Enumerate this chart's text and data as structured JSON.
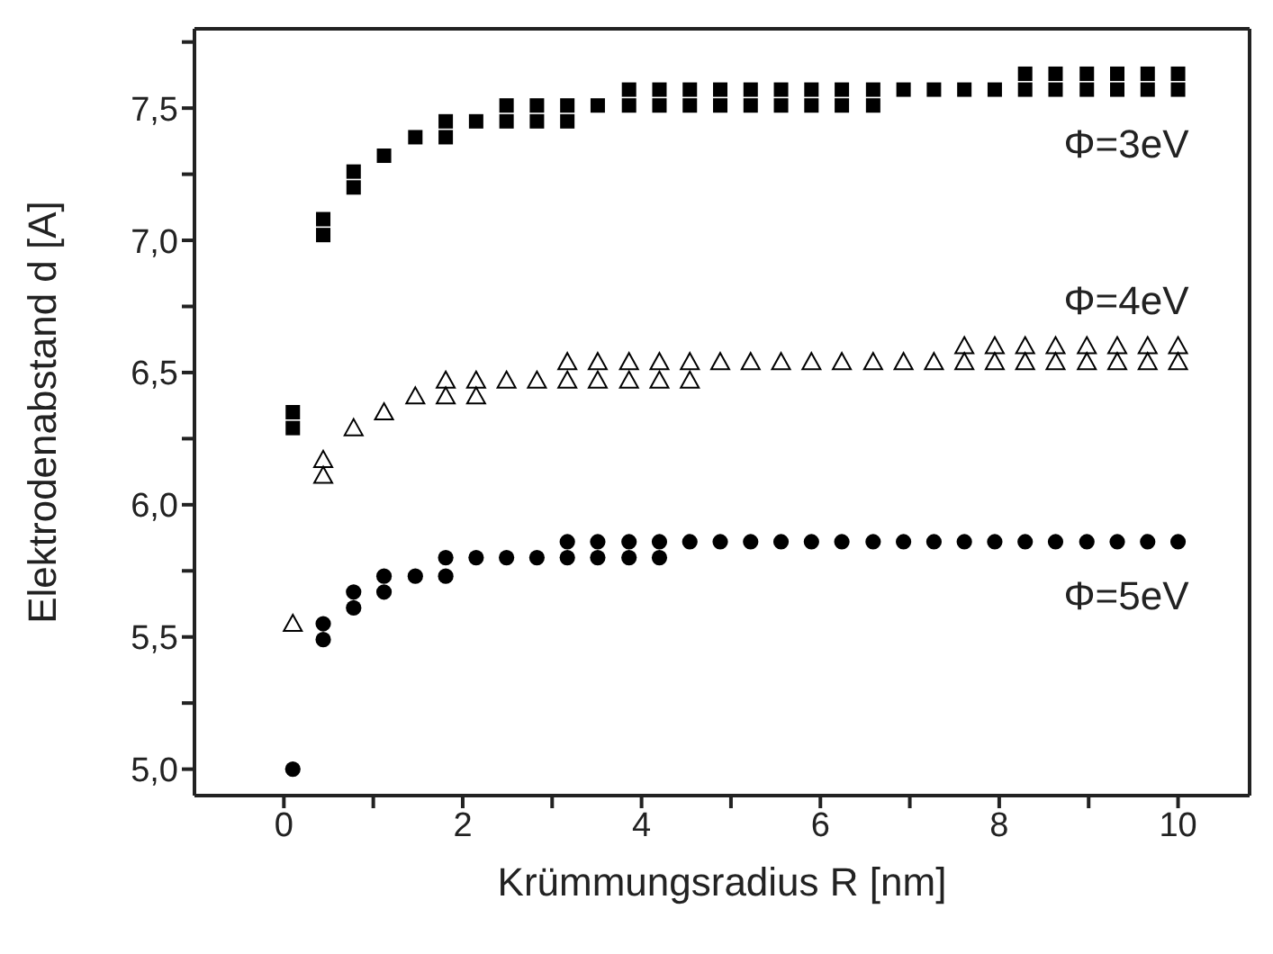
{
  "chart_data": {
    "type": "scatter",
    "xlabel": "Krümmungsradius R [nm]",
    "ylabel": "Elektrodenabstand d [A]",
    "xlim": [
      -1,
      10.8
    ],
    "ylim": [
      4.9,
      7.8
    ],
    "xticks": [
      0,
      {
        "value": 1,
        "label": null
      },
      2,
      {
        "value": 3,
        "label": null
      },
      4,
      {
        "value": 5,
        "label": null
      },
      6,
      {
        "value": 7,
        "label": null
      },
      8,
      {
        "value": 9,
        "label": null
      },
      10
    ],
    "yticks": [
      {
        "value": 5,
        "label": "5,0"
      },
      {
        "value": 5.25,
        "label": null
      },
      {
        "value": 5.5,
        "label": "5,5"
      },
      {
        "value": 5.75,
        "label": null
      },
      {
        "value": 6,
        "label": "6,0"
      },
      {
        "value": 6.25,
        "label": null
      },
      {
        "value": 6.5,
        "label": "6,5"
      },
      {
        "value": 6.75,
        "label": null
      },
      {
        "value": 7,
        "label": "7,0"
      },
      {
        "value": 7.25,
        "label": null
      },
      {
        "value": 7.5,
        "label": "7,5"
      },
      {
        "value": 7.75,
        "label": null
      }
    ],
    "series": [
      {
        "name": "Φ=3eV",
        "color": "#000000",
        "marker": "square",
        "x": [
          0.1,
          0.1,
          0.44,
          0.44,
          0.78,
          0.78,
          1.12,
          1.47,
          1.81,
          1.81,
          2.15,
          2.49,
          2.49,
          2.83,
          2.83,
          3.17,
          3.17,
          3.51,
          3.86,
          3.86,
          4.2,
          4.2,
          4.54,
          4.54,
          4.88,
          4.88,
          5.22,
          5.22,
          5.56,
          5.56,
          5.9,
          5.9,
          6.24,
          6.24,
          6.59,
          6.59,
          6.93,
          7.27,
          7.61,
          7.95,
          8.29,
          8.29,
          8.63,
          8.63,
          8.98,
          8.98,
          9.32,
          9.32,
          9.66,
          9.66,
          10,
          10
        ],
        "values": [
          6.35,
          6.29,
          7.08,
          7.02,
          7.26,
          7.2,
          7.32,
          7.39,
          7.45,
          7.39,
          7.45,
          7.51,
          7.45,
          7.51,
          7.45,
          7.51,
          7.45,
          7.51,
          7.57,
          7.51,
          7.57,
          7.51,
          7.57,
          7.51,
          7.57,
          7.51,
          7.57,
          7.51,
          7.57,
          7.51,
          7.57,
          7.51,
          7.57,
          7.51,
          7.57,
          7.51,
          7.57,
          7.57,
          7.57,
          7.57,
          7.63,
          7.57,
          7.63,
          7.57,
          7.63,
          7.57,
          7.63,
          7.57,
          7.63,
          7.57,
          7.63,
          7.57
        ]
      },
      {
        "name": "Φ=4eV",
        "color": "#000000",
        "marker": "triangle",
        "x": [
          0.1,
          0.44,
          0.44,
          0.78,
          1.12,
          1.47,
          1.81,
          1.81,
          2.15,
          2.15,
          2.49,
          2.83,
          3.17,
          3.17,
          3.51,
          3.51,
          3.86,
          3.86,
          4.2,
          4.2,
          4.54,
          4.54,
          4.88,
          5.22,
          5.56,
          5.9,
          6.24,
          6.59,
          6.93,
          7.27,
          7.61,
          7.61,
          7.95,
          7.95,
          8.29,
          8.29,
          8.63,
          8.63,
          8.98,
          8.98,
          9.32,
          9.32,
          9.66,
          9.66,
          10,
          10
        ],
        "values": [
          5.55,
          6.17,
          6.11,
          6.29,
          6.35,
          6.41,
          6.47,
          6.41,
          6.47,
          6.41,
          6.47,
          6.47,
          6.54,
          6.47,
          6.54,
          6.47,
          6.54,
          6.47,
          6.54,
          6.47,
          6.54,
          6.47,
          6.54,
          6.54,
          6.54,
          6.54,
          6.54,
          6.54,
          6.54,
          6.54,
          6.6,
          6.54,
          6.6,
          6.54,
          6.6,
          6.54,
          6.6,
          6.54,
          6.6,
          6.54,
          6.6,
          6.54,
          6.6,
          6.54,
          6.6,
          6.54
        ]
      },
      {
        "name": "Φ=5eV",
        "color": "#000000",
        "marker": "circle",
        "x": [
          0.1,
          0.44,
          0.44,
          0.78,
          0.78,
          1.12,
          1.12,
          1.47,
          1.81,
          1.81,
          2.15,
          2.49,
          2.83,
          3.17,
          3.17,
          3.51,
          3.51,
          3.86,
          3.86,
          4.2,
          4.2,
          4.54,
          4.88,
          5.22,
          5.56,
          5.9,
          6.24,
          6.59,
          6.93,
          7.27,
          7.61,
          7.95,
          8.29,
          8.63,
          8.98,
          9.32,
          9.66,
          10
        ],
        "values": [
          5.0,
          5.55,
          5.49,
          5.67,
          5.61,
          5.73,
          5.67,
          5.73,
          5.8,
          5.73,
          5.8,
          5.8,
          5.8,
          5.86,
          5.8,
          5.86,
          5.8,
          5.86,
          5.8,
          5.86,
          5.8,
          5.86,
          5.86,
          5.86,
          5.86,
          5.86,
          5.86,
          5.86,
          5.86,
          5.86,
          5.86,
          5.86,
          5.86,
          5.86,
          5.86,
          5.86,
          5.86,
          5.86
        ]
      }
    ]
  }
}
